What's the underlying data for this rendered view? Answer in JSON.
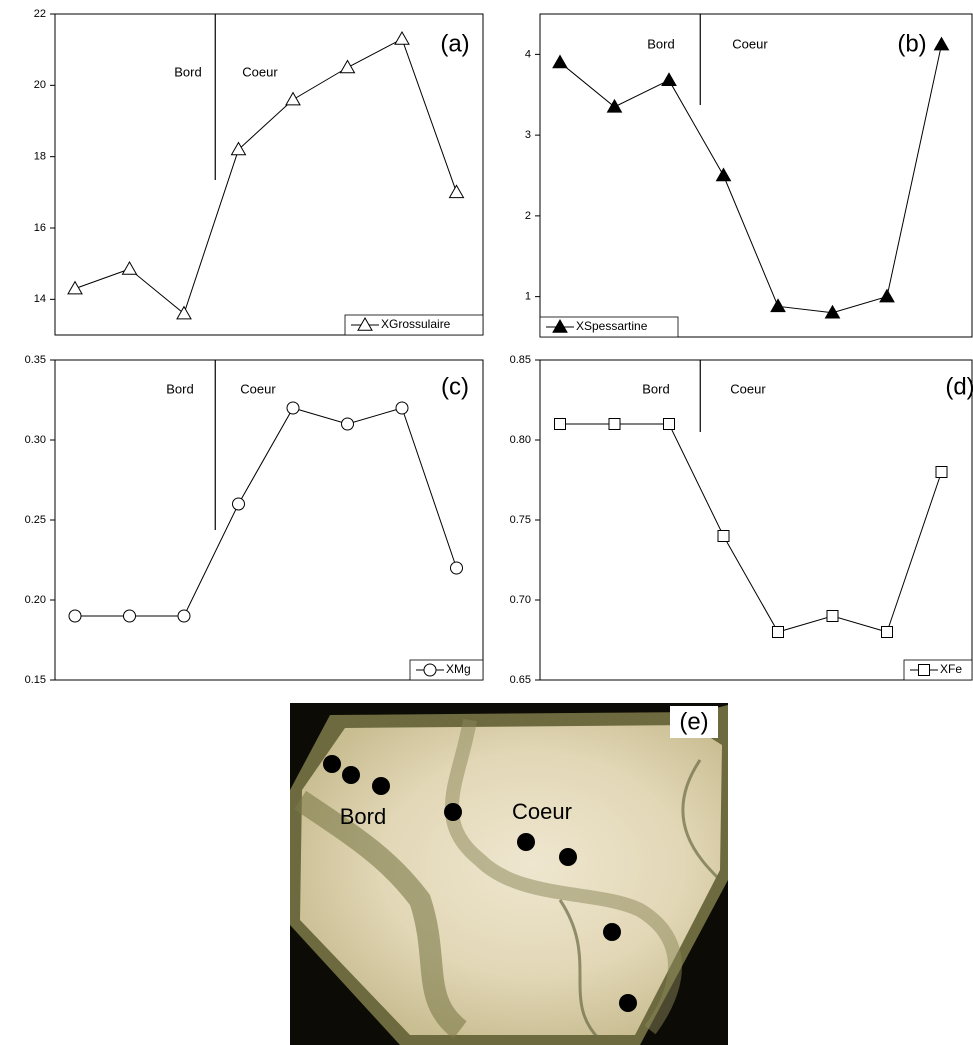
{
  "chart_data": [
    {
      "type": "line",
      "title": "(a)",
      "annotations": [
        "Bord",
        "Coeur"
      ],
      "categories": [
        null,
        null,
        null,
        null,
        null,
        null,
        null,
        null
      ],
      "series": [
        {
          "name": "XGrossulaire",
          "color": "#000000",
          "marker": "triangle",
          "marker_fill": "#ffffff",
          "values": [
            14.3,
            14.85,
            13.6,
            18.2,
            19.6,
            20.5,
            21.3,
            17.0
          ]
        }
      ],
      "ylim": [
        13,
        22
      ],
      "yticks": [
        14,
        16,
        18,
        20,
        22
      ],
      "legend": "lower right"
    },
    {
      "type": "line",
      "title": "(b)",
      "annotations": [
        "Bord",
        "Coeur"
      ],
      "categories": [
        null,
        null,
        null,
        null,
        null,
        null,
        null,
        null
      ],
      "series": [
        {
          "name": "XSpessartine",
          "color": "#000000",
          "marker": "triangle",
          "marker_fill": "#000000",
          "values": [
            3.9,
            3.35,
            3.68,
            2.5,
            0.88,
            0.8,
            1.0,
            4.12
          ]
        }
      ],
      "ylim": [
        0.5,
        4.5
      ],
      "yticks": [
        1,
        2,
        3,
        4
      ],
      "legend": "lower left"
    },
    {
      "type": "line",
      "title": "(c)",
      "annotations": [
        "Bord",
        "Coeur"
      ],
      "categories": [
        null,
        null,
        null,
        null,
        null,
        null,
        null,
        null
      ],
      "series": [
        {
          "name": "XMg",
          "color": "#000000",
          "marker": "circle",
          "marker_fill": "#ffffff",
          "values": [
            0.19,
            0.19,
            0.19,
            0.26,
            0.32,
            0.31,
            0.32,
            0.22
          ]
        }
      ],
      "ylim": [
        0.15,
        0.35
      ],
      "yticks": [
        0.15,
        {
          "value": 0.2,
          "label": "0.20"
        },
        0.25,
        {
          "value": 0.3,
          "label": "0.30"
        },
        0.35
      ],
      "legend": "lower right"
    },
    {
      "type": "line",
      "title": "(d)",
      "annotations": [
        "Bord",
        "Coeur"
      ],
      "categories": [
        null,
        null,
        null,
        null,
        null,
        null,
        null,
        null
      ],
      "series": [
        {
          "name": "XFe",
          "color": "#000000",
          "marker": "square",
          "marker_fill": "#ffffff",
          "values": [
            0.81,
            0.81,
            0.81,
            0.74,
            0.68,
            0.69,
            0.68,
            0.78
          ]
        }
      ],
      "ylim": [
        0.65,
        0.85
      ],
      "yticks": [
        0.65,
        {
          "value": 0.7,
          "label": "0.70"
        },
        0.75,
        {
          "value": 0.8,
          "label": "0.80"
        },
        0.85
      ],
      "legend": "lower right"
    }
  ],
  "photo": {
    "label": "(e)",
    "annotations": [
      "Bord",
      "Coeur"
    ]
  }
}
